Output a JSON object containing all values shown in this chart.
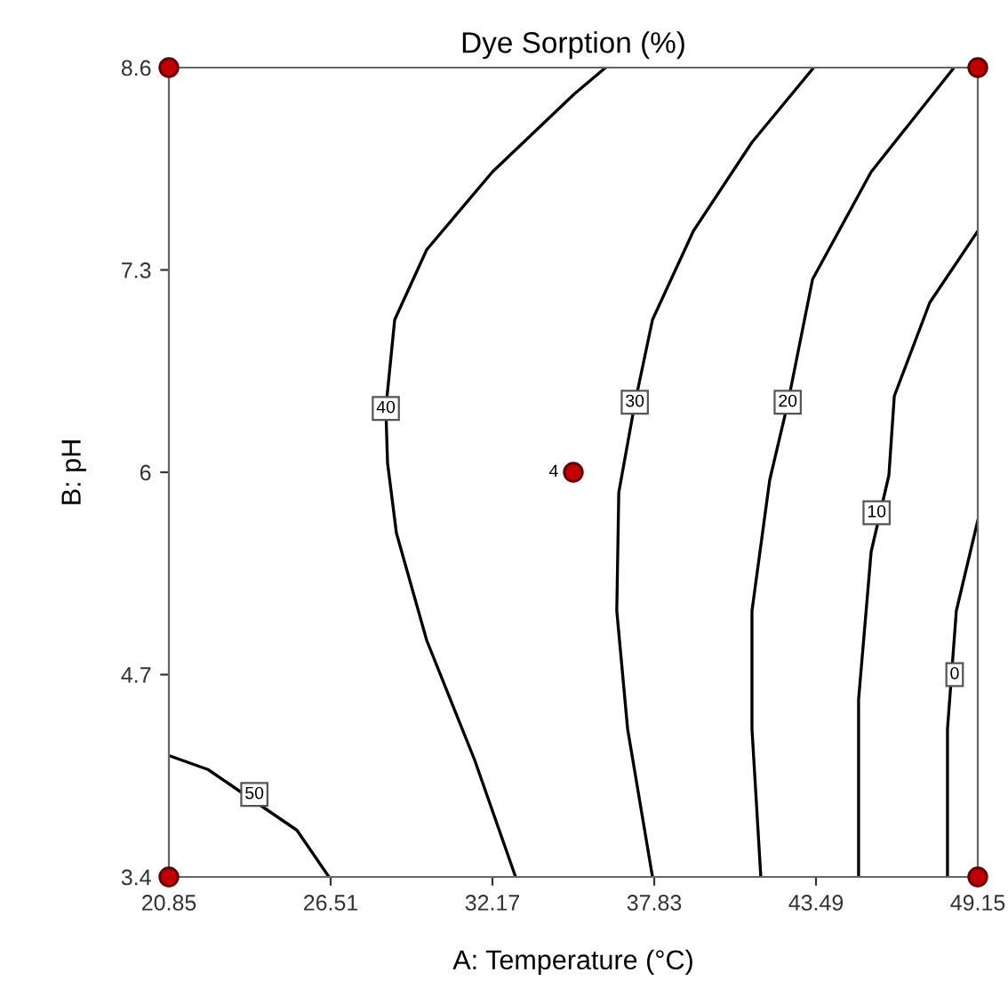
{
  "chart_data": {
    "type": "line",
    "title": "Dye Sorption (%)",
    "xlabel": "A: Temperature (°C)",
    "ylabel": "B: pH",
    "xlim": [
      20.85,
      49.15
    ],
    "ylim": [
      3.4,
      8.6
    ],
    "xticks": [
      20.85,
      26.51,
      32.17,
      37.83,
      43.49,
      49.15
    ],
    "yticks": [
      3.4,
      4.7,
      6,
      7.3,
      8.6
    ],
    "grid": false,
    "legend": false,
    "marker": "none",
    "line_style": "solid",
    "series": [
      {
        "color": "#000000",
        "x": [
          36.13,
          35.03,
          32.17,
          29.87,
          28.75,
          28.44,
          28.5,
          28.81,
          29.87,
          31.55,
          32.98
        ],
        "values": [
          8.6,
          8.43,
          7.93,
          7.43,
          6.98,
          6.41,
          6.06,
          5.61,
          4.92,
          4.15,
          3.4
        ]
      },
      {
        "color": "#000000",
        "x": [
          43.41,
          41.25,
          39.2,
          37.77,
          37.15,
          36.59,
          36.52,
          36.9,
          37.77
        ],
        "values": [
          8.6,
          8.12,
          7.55,
          6.98,
          6.44,
          5.87,
          5.11,
          4.35,
          3.4
        ]
      },
      {
        "color": "#000000",
        "x": [
          48.32,
          45.42,
          43.37,
          42.5,
          41.87,
          41.25,
          41.25,
          41.56
        ],
        "values": [
          8.6,
          7.93,
          7.24,
          6.44,
          5.95,
          5.11,
          4.35,
          3.4
        ]
      },
      {
        "color": "#000000",
        "x": [
          49.15,
          47.47,
          46.23,
          46.04,
          45.42,
          44.98,
          44.98
        ],
        "values": [
          7.55,
          7.09,
          6.49,
          5.98,
          5.49,
          4.54,
          3.4
        ]
      },
      {
        "color": "#000000",
        "x": [
          49.15,
          48.4,
          48.09,
          48.09
        ],
        "values": [
          5.69,
          5.11,
          4.35,
          3.4
        ]
      },
      {
        "color": "#000000",
        "x": [
          20.85,
          22.22,
          25.33,
          26.45
        ],
        "values": [
          4.18,
          4.09,
          3.7,
          3.4
        ]
      },
      {
        "type": "scatter",
        "marker": "circle",
        "color": "#c00000",
        "x": [
          20.85,
          49.15,
          20.85,
          49.15,
          35
        ],
        "values": [
          3.4,
          3.4,
          8.6,
          8.6,
          6
        ]
      }
    ],
    "annotations": [
      {
        "text": "40",
        "x": 28.44,
        "y": 6.41
      },
      {
        "text": "30",
        "x": 37.15,
        "y": 6.45
      },
      {
        "text": "20",
        "x": 42.5,
        "y": 6.45
      },
      {
        "text": "10",
        "x": 45.61,
        "y": 5.74
      },
      {
        "text": "0",
        "x": 48.34,
        "y": 4.7
      },
      {
        "text": "50",
        "x": 23.84,
        "y": 3.93
      },
      {
        "text": "4",
        "x": 35,
        "y": 6
      }
    ]
  }
}
